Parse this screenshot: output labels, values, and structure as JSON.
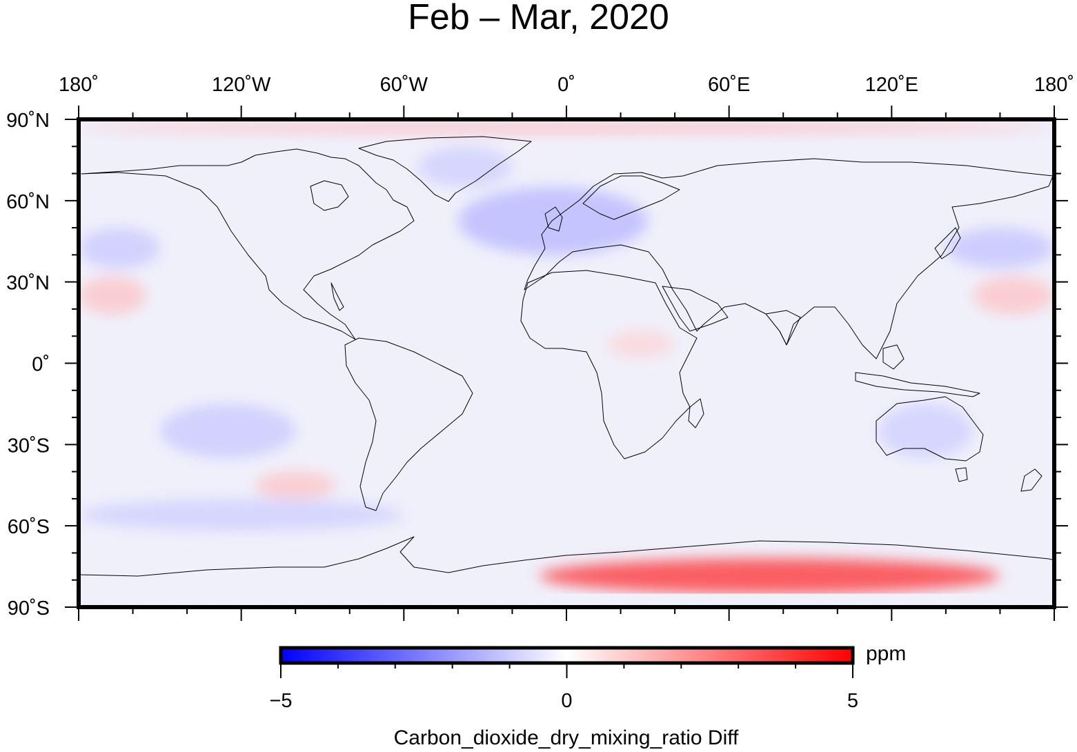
{
  "map": {
    "title": "Feb – Mar, 2020",
    "projection": "plate-carree",
    "lon_range": [
      -180,
      180
    ],
    "lat_range": [
      -90,
      90
    ],
    "lon_ticks": [
      {
        "value": -180,
        "label": "180˚"
      },
      {
        "value": -120,
        "label": "120˚W"
      },
      {
        "value": -60,
        "label": "60˚W"
      },
      {
        "value": 0,
        "label": "0˚"
      },
      {
        "value": 60,
        "label": "60˚E"
      },
      {
        "value": 120,
        "label": "120˚E"
      },
      {
        "value": 180,
        "label": "180˚"
      }
    ],
    "lat_ticks": [
      {
        "value": 90,
        "label": "90˚N"
      },
      {
        "value": 60,
        "label": "60˚N"
      },
      {
        "value": 30,
        "label": "30˚N"
      },
      {
        "value": 0,
        "label": "0˚"
      },
      {
        "value": -30,
        "label": "30˚S"
      },
      {
        "value": -60,
        "label": "60˚S"
      },
      {
        "value": -90,
        "label": "90˚S"
      }
    ],
    "field_summary": {
      "background": "mostly near-zero (white/faint blue) with noise",
      "features": [
        {
          "region": "Antarctic interior (East Antarctica)",
          "lon": [
            -10,
            160
          ],
          "lat": [
            -85,
            -72
          ],
          "value": 3.5
        },
        {
          "region": "North Atlantic / Europe",
          "lon": [
            -40,
            30
          ],
          "lat": [
            40,
            65
          ],
          "value": -1.2
        },
        {
          "region": "Greenland",
          "lon": [
            -55,
            -20
          ],
          "lat": [
            65,
            80
          ],
          "value": -0.8
        },
        {
          "region": "Arctic edge",
          "lon": [
            -180,
            180
          ],
          "lat": [
            85,
            89
          ],
          "value": 1.2
        },
        {
          "region": "Central Pacific north",
          "lon": [
            -180,
            -155
          ],
          "lat": [
            18,
            32
          ],
          "value": 1.0
        },
        {
          "region": "Western Pacific north",
          "lon": [
            150,
            180
          ],
          "lat": [
            18,
            32
          ],
          "value": 1.0
        },
        {
          "region": "South Pacific",
          "lon": [
            -115,
            -85
          ],
          "lat": [
            -50,
            -40
          ],
          "value": 1.0
        },
        {
          "region": "Central Africa",
          "lon": [
            15,
            40
          ],
          "lat": [
            2,
            12
          ],
          "value": 0.7
        },
        {
          "region": "Eastern Pacific tropics",
          "lon": [
            -150,
            -100
          ],
          "lat": [
            -35,
            -15
          ],
          "value": -0.9
        },
        {
          "region": "Southern Ocean",
          "lon": [
            -180,
            -60
          ],
          "lat": [
            -62,
            -50
          ],
          "value": -0.8
        },
        {
          "region": "North Pacific",
          "lon": [
            140,
            180
          ],
          "lat": [
            35,
            50
          ],
          "value": -1.0
        },
        {
          "region": "Eastern Pacific north",
          "lon": [
            -180,
            -150
          ],
          "lat": [
            35,
            50
          ],
          "value": -0.9
        },
        {
          "region": "Australia",
          "lon": [
            115,
            150
          ],
          "lat": [
            -35,
            -15
          ],
          "value": -0.8
        }
      ]
    }
  },
  "colorbar": {
    "range": [
      -5,
      5
    ],
    "ticks": [
      {
        "value": -5,
        "label": "−5"
      },
      {
        "value": 0,
        "label": "0"
      },
      {
        "value": 5,
        "label": "5"
      }
    ],
    "minor_step": 1,
    "colors": {
      "low": "#0000ff",
      "mid": "#ffffff",
      "high": "#ff0000"
    },
    "unit": "ppm",
    "title": "Carbon_dioxide_dry_mixing_ratio Diff"
  },
  "colors": {
    "coast": "#000000",
    "frame": "#000000"
  }
}
